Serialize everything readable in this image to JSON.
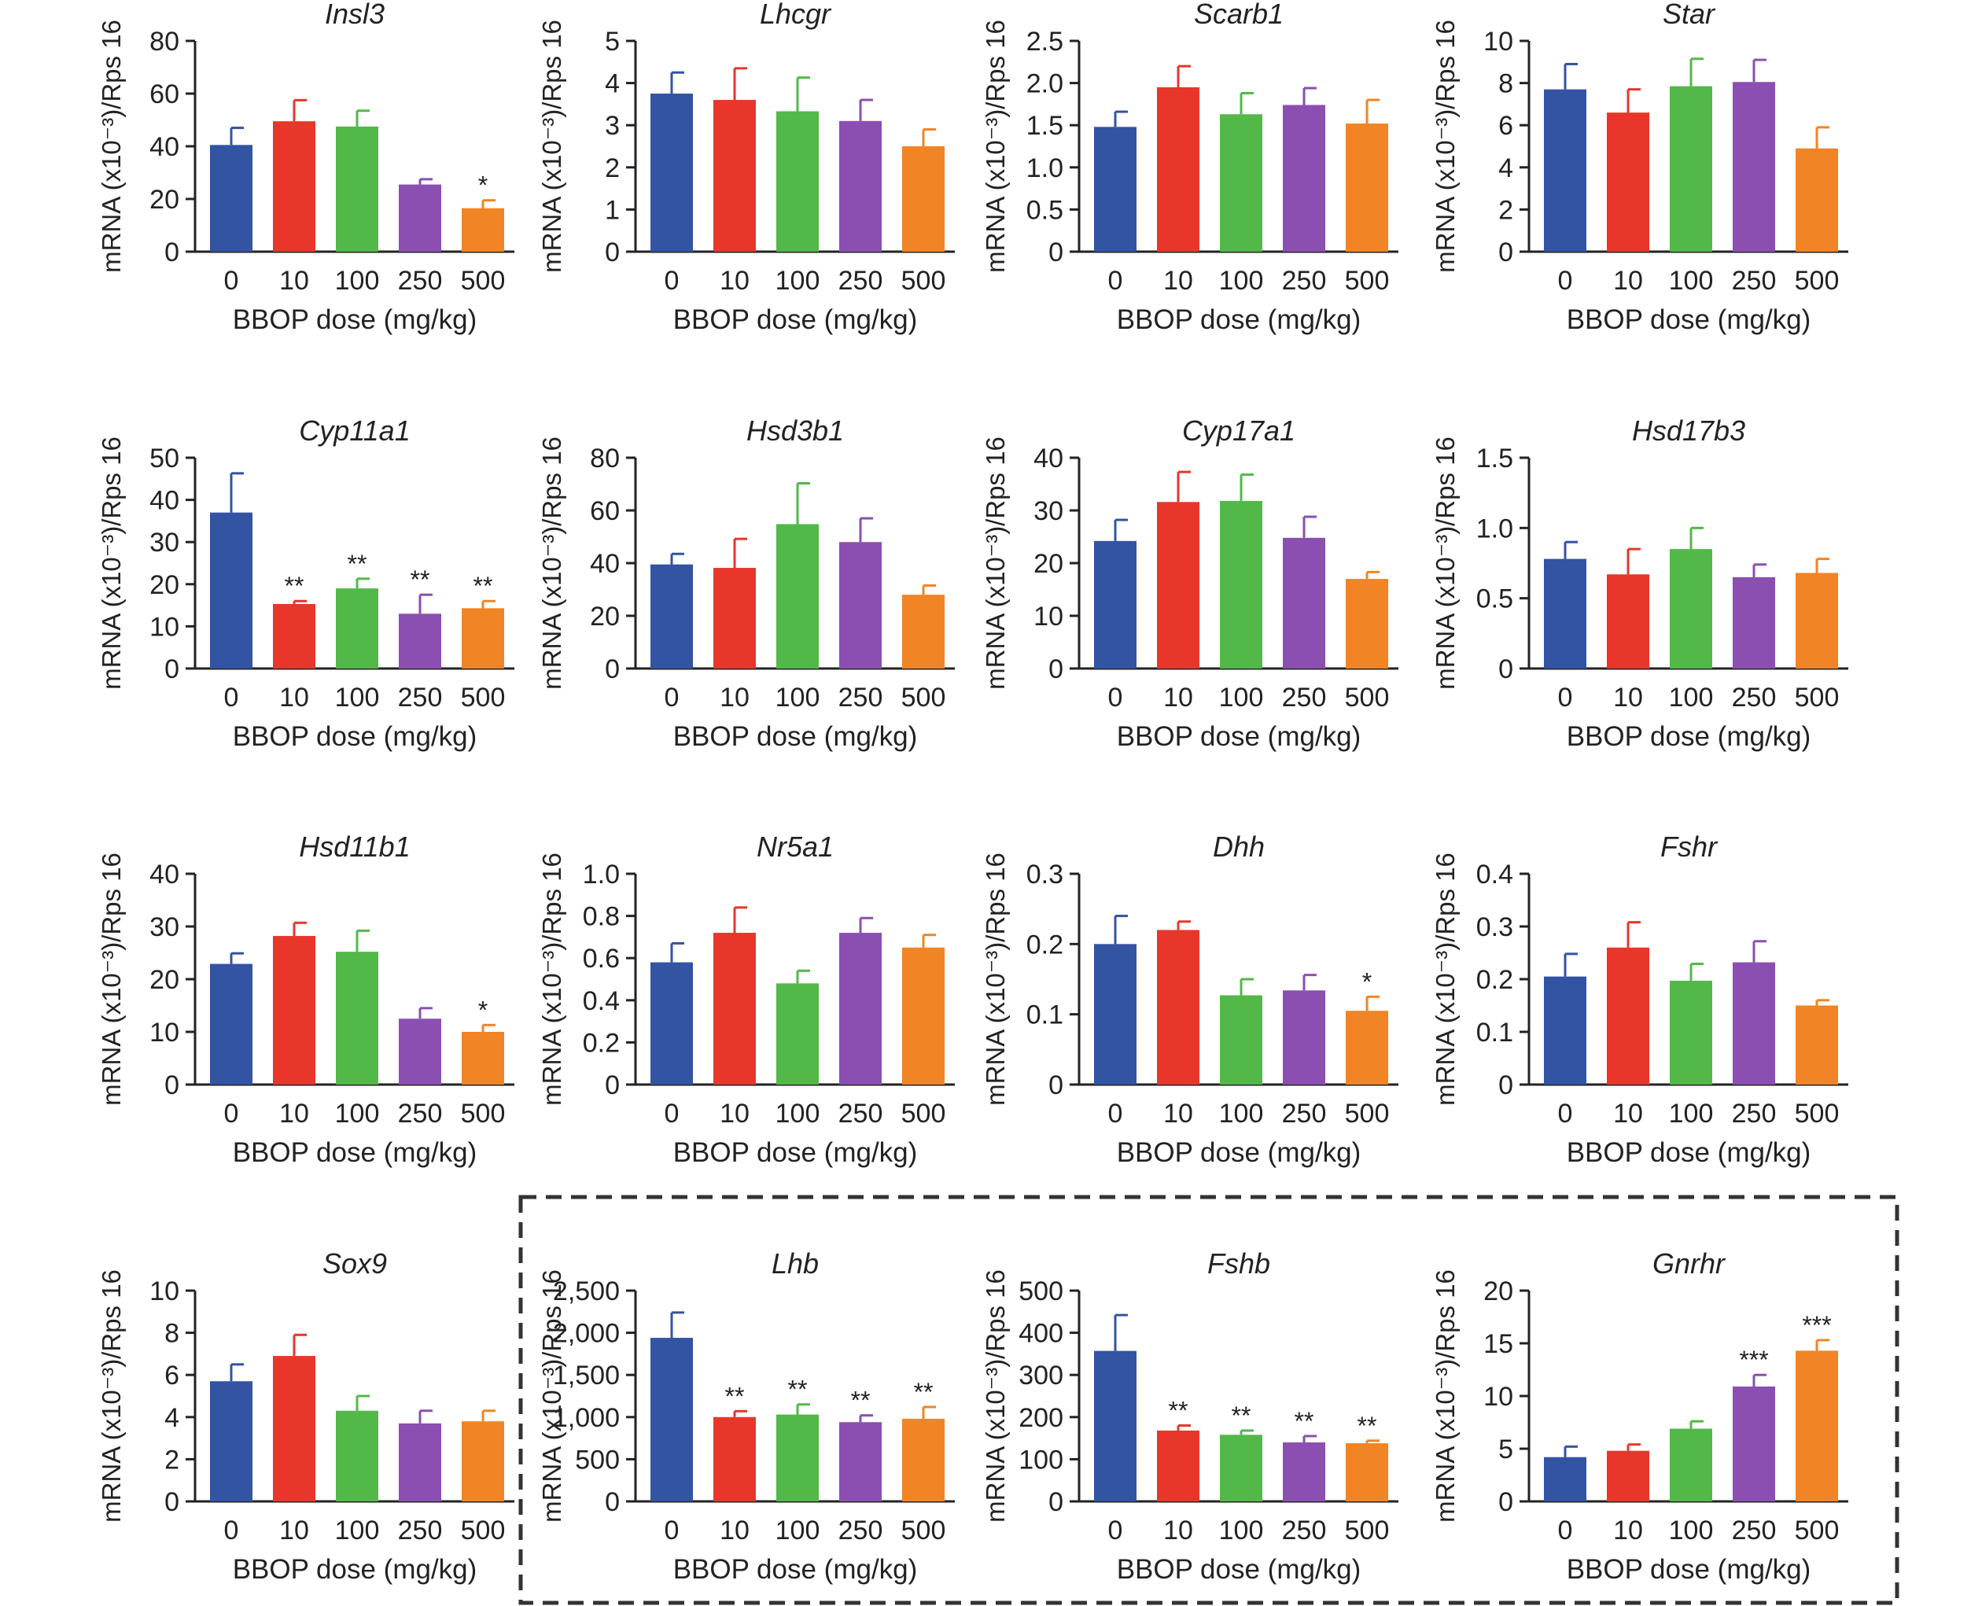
{
  "figure": {
    "dose_colors": [
      "#3353a3",
      "#e8362a",
      "#52b848",
      "#8a4fb0",
      "#f18424"
    ],
    "boxed_group": [
      "Lhb",
      "Fshb",
      "Gnrhr"
    ]
  },
  "chart_data": [
    {
      "type": "bar",
      "title": "Insl3",
      "categories": [
        "0",
        "10",
        "100",
        "250",
        "500"
      ],
      "values": [
        40.5,
        49.5,
        47.5,
        25.5,
        16.5
      ],
      "errors": [
        6.5,
        8,
        6,
        2,
        3
      ],
      "significance": [
        "",
        "",
        "",
        "",
        "*"
      ],
      "ylim": [
        0,
        80
      ],
      "yticks": [
        "0",
        "20",
        "40",
        "60",
        "80"
      ],
      "ylabel": "mRNA (x10⁻³)/Rps 16",
      "xlabel": "BBOP dose (mg/kg)"
    },
    {
      "type": "bar",
      "title": "Lhcgr",
      "categories": [
        "0",
        "10",
        "100",
        "250",
        "500"
      ],
      "values": [
        3.75,
        3.6,
        3.33,
        3.1,
        2.5
      ],
      "errors": [
        0.5,
        0.75,
        0.8,
        0.5,
        0.4
      ],
      "significance": [
        "",
        "",
        "",
        "",
        ""
      ],
      "ylim": [
        0,
        5
      ],
      "yticks": [
        "0",
        "1",
        "2",
        "3",
        "4",
        "5"
      ],
      "ylabel": "mRNA (x10⁻³)/Rps 16",
      "xlabel": "BBOP dose (mg/kg)"
    },
    {
      "type": "bar",
      "title": "Scarb1",
      "categories": [
        "0",
        "10",
        "100",
        "250",
        "500"
      ],
      "values": [
        1.48,
        1.95,
        1.63,
        1.74,
        1.52
      ],
      "errors": [
        0.18,
        0.25,
        0.25,
        0.2,
        0.28
      ],
      "significance": [
        "",
        "",
        "",
        "",
        ""
      ],
      "ylim": [
        0,
        2.5
      ],
      "yticks": [
        "0",
        "0.5",
        "1.0",
        "1.5",
        "2.0",
        "2.5"
      ],
      "ylabel": "mRNA (x10⁻³)/Rps 16",
      "xlabel": "BBOP dose (mg/kg)"
    },
    {
      "type": "bar",
      "title": "Star",
      "categories": [
        "0",
        "10",
        "100",
        "250",
        "500"
      ],
      "values": [
        7.7,
        6.6,
        7.85,
        8.05,
        4.9
      ],
      "errors": [
        1.2,
        1.1,
        1.3,
        1.05,
        1
      ],
      "significance": [
        "",
        "",
        "",
        "",
        ""
      ],
      "ylim": [
        0,
        10
      ],
      "yticks": [
        "0",
        "2",
        "4",
        "6",
        "8",
        "10"
      ],
      "ylabel": "mRNA (x10⁻³)/Rps 16",
      "xlabel": "BBOP dose (mg/kg)"
    },
    {
      "type": "bar",
      "title": "Cyp11a1",
      "categories": [
        "0",
        "10",
        "100",
        "250",
        "500"
      ],
      "values": [
        37,
        15.3,
        19,
        13,
        14.3
      ],
      "errors": [
        9.3,
        0.7,
        2.3,
        4.5,
        1.7
      ],
      "significance": [
        "",
        "**",
        "**",
        "**",
        "**"
      ],
      "ylim": [
        0,
        50
      ],
      "yticks": [
        "0",
        "10",
        "20",
        "30",
        "40",
        "50"
      ],
      "ylabel": "mRNA (x10⁻³)/Rps 16",
      "xlabel": "BBOP dose (mg/kg)"
    },
    {
      "type": "bar",
      "title": "Hsd3b1",
      "categories": [
        "0",
        "10",
        "100",
        "250",
        "500"
      ],
      "values": [
        39.5,
        38.2,
        54.8,
        48,
        28
      ],
      "errors": [
        4,
        11,
        15.5,
        9,
        3.5
      ],
      "significance": [
        "",
        "",
        "",
        "",
        ""
      ],
      "ylim": [
        0,
        80
      ],
      "yticks": [
        "0",
        "20",
        "40",
        "60",
        "80"
      ],
      "ylabel": "mRNA (x10⁻³)/Rps 16",
      "xlabel": "BBOP dose (mg/kg)"
    },
    {
      "type": "bar",
      "title": "Cyp17a1",
      "categories": [
        "0",
        "10",
        "100",
        "250",
        "500"
      ],
      "values": [
        24.2,
        31.6,
        31.8,
        24.8,
        17
      ],
      "errors": [
        4,
        5.7,
        5,
        4,
        1.3
      ],
      "significance": [
        "",
        "",
        "",
        "",
        ""
      ],
      "ylim": [
        0,
        40
      ],
      "yticks": [
        "0",
        "10",
        "20",
        "30",
        "40"
      ],
      "ylabel": "mRNA (x10⁻³)/Rps 16",
      "xlabel": "BBOP dose (mg/kg)"
    },
    {
      "type": "bar",
      "title": "Hsd17b3",
      "categories": [
        "0",
        "10",
        "100",
        "250",
        "500"
      ],
      "values": [
        0.78,
        0.67,
        0.85,
        0.65,
        0.68
      ],
      "errors": [
        0.12,
        0.18,
        0.15,
        0.09,
        0.1
      ],
      "significance": [
        "",
        "",
        "",
        "",
        ""
      ],
      "ylim": [
        0,
        1.5
      ],
      "yticks": [
        "0",
        "0.5",
        "1.0",
        "1.5"
      ],
      "ylabel": "mRNA (x10⁻³)/Rps 16",
      "xlabel": "BBOP dose (mg/kg)"
    },
    {
      "type": "bar",
      "title": "Hsd11b1",
      "categories": [
        "0",
        "10",
        "100",
        "250",
        "500"
      ],
      "values": [
        22.9,
        28.2,
        25.2,
        12.5,
        10
      ],
      "errors": [
        2,
        2.5,
        4,
        2,
        1.3
      ],
      "significance": [
        "",
        "",
        "",
        "",
        "*"
      ],
      "ylim": [
        0,
        40
      ],
      "yticks": [
        "0",
        "10",
        "20",
        "30",
        "40"
      ],
      "ylabel": "mRNA (x10⁻³)/Rps 16",
      "xlabel": "BBOP dose (mg/kg)"
    },
    {
      "type": "bar",
      "title": "Nr5a1",
      "categories": [
        "0",
        "10",
        "100",
        "250",
        "500"
      ],
      "values": [
        0.58,
        0.72,
        0.48,
        0.72,
        0.65
      ],
      "errors": [
        0.09,
        0.12,
        0.06,
        0.07,
        0.06
      ],
      "significance": [
        "",
        "",
        "",
        "",
        ""
      ],
      "ylim": [
        0,
        1.0
      ],
      "yticks": [
        "0",
        "0.2",
        "0.4",
        "0.6",
        "0.8",
        "1.0"
      ],
      "ylabel": "mRNA (x10⁻³)/Rps 16",
      "xlabel": "BBOP dose (mg/kg)"
    },
    {
      "type": "bar",
      "title": "Dhh",
      "categories": [
        "0",
        "10",
        "100",
        "250",
        "500"
      ],
      "values": [
        0.2,
        0.22,
        0.127,
        0.134,
        0.105
      ],
      "errors": [
        0.04,
        0.012,
        0.023,
        0.022,
        0.02
      ],
      "significance": [
        "",
        "",
        "",
        "",
        "*"
      ],
      "ylim": [
        0,
        0.3
      ],
      "yticks": [
        "0",
        "0.1",
        "0.2",
        "0.3"
      ],
      "ylabel": "mRNA (x10⁻³)/Rps 16",
      "xlabel": "BBOP dose (mg/kg)"
    },
    {
      "type": "bar",
      "title": "Fshr",
      "categories": [
        "0",
        "10",
        "100",
        "250",
        "500"
      ],
      "values": [
        0.205,
        0.26,
        0.197,
        0.232,
        0.15
      ],
      "errors": [
        0.043,
        0.048,
        0.032,
        0.04,
        0.01
      ],
      "significance": [
        "",
        "",
        "",
        "",
        ""
      ],
      "ylim": [
        0,
        0.4
      ],
      "yticks": [
        "0",
        "0.1",
        "0.2",
        "0.3",
        "0.4"
      ],
      "ylabel": "mRNA (x10⁻³)/Rps 16",
      "xlabel": "BBOP dose (mg/kg)"
    },
    {
      "type": "bar",
      "title": "Sox9",
      "categories": [
        "0",
        "10",
        "100",
        "250",
        "500"
      ],
      "values": [
        5.7,
        6.9,
        4.3,
        3.7,
        3.8
      ],
      "errors": [
        0.8,
        1,
        0.7,
        0.6,
        0.5
      ],
      "significance": [
        "",
        "",
        "",
        "",
        ""
      ],
      "ylim": [
        0,
        10
      ],
      "yticks": [
        "0",
        "2",
        "4",
        "6",
        "8",
        "10"
      ],
      "ylabel": "mRNA (x10⁻³)/Rps 16",
      "xlabel": "BBOP dose (mg/kg)"
    },
    {
      "type": "bar",
      "title": "Lhb",
      "categories": [
        "0",
        "10",
        "100",
        "250",
        "500"
      ],
      "values": [
        1940,
        1000,
        1030,
        940,
        980
      ],
      "errors": [
        300,
        70,
        120,
        80,
        140
      ],
      "significance": [
        "",
        "**",
        "**",
        "**",
        "**"
      ],
      "ylim": [
        0,
        2500
      ],
      "yticks": [
        "0",
        "500",
        "1,000",
        "1,500",
        "2,000",
        "2,500"
      ],
      "ylabel": "mRNA (x10⁻³)/Rps 16",
      "xlabel": "BBOP dose (mg/kg)"
    },
    {
      "type": "bar",
      "title": "Fshb",
      "categories": [
        "0",
        "10",
        "100",
        "250",
        "500"
      ],
      "values": [
        357,
        168,
        158,
        140,
        138
      ],
      "errors": [
        85,
        12,
        10,
        15,
        6
      ],
      "significance": [
        "",
        "**",
        "**",
        "**",
        "**"
      ],
      "ylim": [
        0,
        500
      ],
      "yticks": [
        "0",
        "100",
        "200",
        "300",
        "400",
        "500"
      ],
      "ylabel": "mRNA (x10⁻³)/Rps 16",
      "xlabel": "BBOP dose (mg/kg)"
    },
    {
      "type": "bar",
      "title": "Gnrhr",
      "categories": [
        "0",
        "10",
        "100",
        "250",
        "500"
      ],
      "values": [
        4.2,
        4.8,
        6.9,
        10.9,
        14.3
      ],
      "errors": [
        1,
        0.6,
        0.7,
        1.1,
        1
      ],
      "significance": [
        "",
        "",
        "",
        "***",
        "***"
      ],
      "ylim": [
        0,
        20
      ],
      "yticks": [
        "0",
        "5",
        "10",
        "15",
        "20"
      ],
      "ylabel": "mRNA (x10⁻³)/Rps 16",
      "xlabel": "BBOP dose (mg/kg)"
    }
  ]
}
